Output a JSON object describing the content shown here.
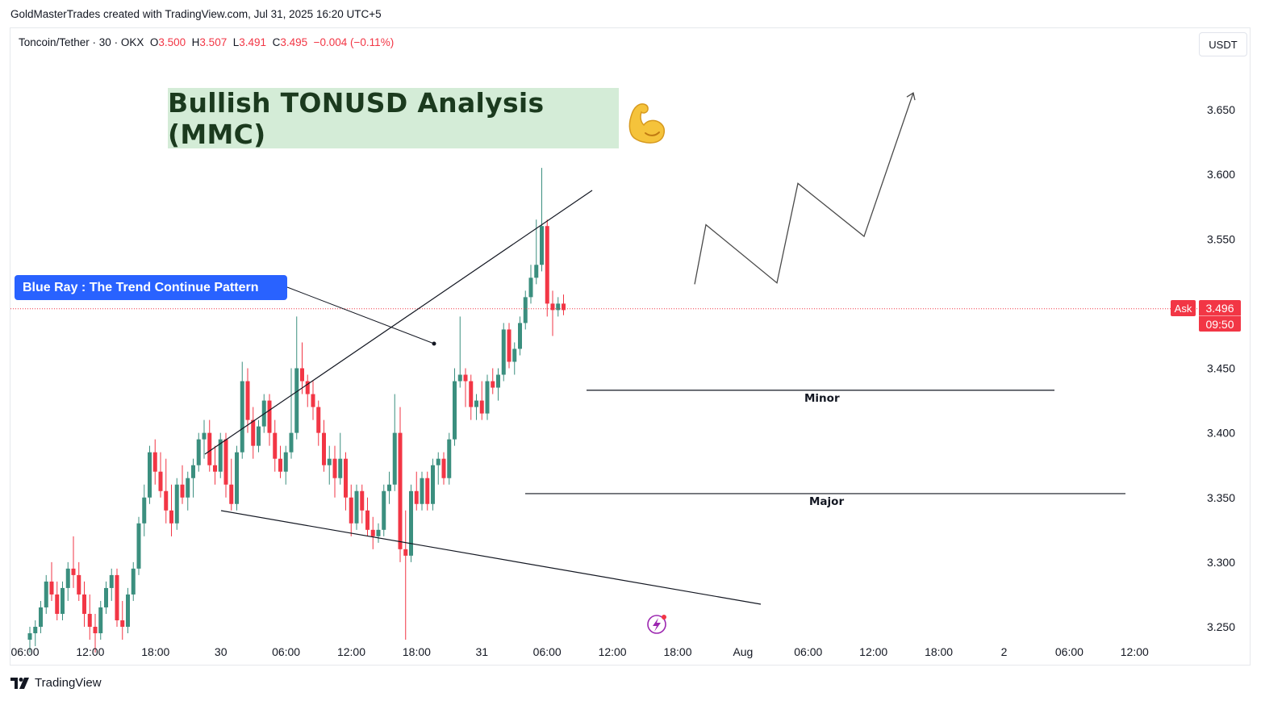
{
  "header": {
    "credit": "GoldMasterTrades created with TradingView.com, Jul 31, 2025 16:20 UTC+5",
    "symbol_label": "Toncoin/Tether · 30 · OKX",
    "o_label": "O",
    "o_value": "3.500",
    "h_label": "H",
    "h_value": "3.507",
    "l_label": "L",
    "l_value": "3.491",
    "c_label": "C",
    "c_value": "3.495",
    "change": "−0.004 (−0.11%)",
    "currency_button": "USDT"
  },
  "annotations": {
    "title": "Bullish TONUSD Analysis (MMC)",
    "callout": "Blue Ray : The Trend Continue Pattern",
    "minor_label": "Minor",
    "major_label": "Major"
  },
  "price_tag": {
    "ask_label": "Ask",
    "price": "3.496",
    "countdown": "09:50"
  },
  "footer": {
    "brand": "TradingView"
  },
  "colors": {
    "up": "#26a69a",
    "up_body": "#3b8f7f",
    "down": "#f23645",
    "accent": "#2962ff",
    "title_bg": "#d4ecd7"
  },
  "chart_data": {
    "type": "candlestick",
    "timeframe": "30",
    "ylim": [
      3.24,
      3.68
    ],
    "y_ticks": [
      "3.650",
      "3.600",
      "3.550",
      "3.500",
      "3.450",
      "3.400",
      "3.350",
      "3.300",
      "3.250"
    ],
    "x_ticks": [
      "06:00",
      "12:00",
      "18:00",
      "30",
      "06:00",
      "12:00",
      "18:00",
      "31",
      "06:00",
      "12:00",
      "18:00",
      "Aug",
      "06:00",
      "12:00",
      "18:00",
      "2",
      "06:00",
      "12:00"
    ],
    "candles_ohlc": [
      [
        3.24,
        3.25,
        3.23,
        3.245
      ],
      [
        3.245,
        3.255,
        3.235,
        3.25
      ],
      [
        3.25,
        3.27,
        3.245,
        3.265
      ],
      [
        3.265,
        3.29,
        3.26,
        3.285
      ],
      [
        3.285,
        3.3,
        3.27,
        3.275
      ],
      [
        3.275,
        3.285,
        3.255,
        3.26
      ],
      [
        3.26,
        3.285,
        3.255,
        3.28
      ],
      [
        3.28,
        3.3,
        3.27,
        3.295
      ],
      [
        3.295,
        3.32,
        3.28,
        3.29
      ],
      [
        3.29,
        3.3,
        3.27,
        3.275
      ],
      [
        3.275,
        3.285,
        3.25,
        3.26
      ],
      [
        3.26,
        3.275,
        3.24,
        3.25
      ],
      [
        3.25,
        3.26,
        3.23,
        3.245
      ],
      [
        3.245,
        3.27,
        3.24,
        3.265
      ],
      [
        3.265,
        3.285,
        3.26,
        3.28
      ],
      [
        3.28,
        3.295,
        3.27,
        3.29
      ],
      [
        3.29,
        3.295,
        3.25,
        3.255
      ],
      [
        3.255,
        3.27,
        3.24,
        3.25
      ],
      [
        3.25,
        3.28,
        3.245,
        3.275
      ],
      [
        3.275,
        3.3,
        3.27,
        3.295
      ],
      [
        3.295,
        3.335,
        3.29,
        3.33
      ],
      [
        3.33,
        3.36,
        3.32,
        3.35
      ],
      [
        3.35,
        3.39,
        3.345,
        3.385
      ],
      [
        3.385,
        3.395,
        3.36,
        3.37
      ],
      [
        3.37,
        3.385,
        3.35,
        3.355
      ],
      [
        3.355,
        3.38,
        3.33,
        3.34
      ],
      [
        3.34,
        3.36,
        3.32,
        3.33
      ],
      [
        3.33,
        3.365,
        3.325,
        3.36
      ],
      [
        3.36,
        3.375,
        3.345,
        3.35
      ],
      [
        3.35,
        3.37,
        3.34,
        3.365
      ],
      [
        3.365,
        3.38,
        3.35,
        3.375
      ],
      [
        3.375,
        3.4,
        3.37,
        3.395
      ],
      [
        3.395,
        3.41,
        3.38,
        3.4
      ],
      [
        3.4,
        3.41,
        3.37,
        3.375
      ],
      [
        3.375,
        3.39,
        3.36,
        3.37
      ],
      [
        3.37,
        3.4,
        3.365,
        3.395
      ],
      [
        3.395,
        3.4,
        3.35,
        3.36
      ],
      [
        3.36,
        3.38,
        3.34,
        3.345
      ],
      [
        3.345,
        3.39,
        3.34,
        3.385
      ],
      [
        3.385,
        3.455,
        3.38,
        3.44
      ],
      [
        3.44,
        3.45,
        3.4,
        3.41
      ],
      [
        3.41,
        3.42,
        3.38,
        3.39
      ],
      [
        3.39,
        3.41,
        3.385,
        3.405
      ],
      [
        3.405,
        3.43,
        3.4,
        3.425
      ],
      [
        3.425,
        3.43,
        3.39,
        3.4
      ],
      [
        3.4,
        3.41,
        3.37,
        3.38
      ],
      [
        3.38,
        3.39,
        3.365,
        3.37
      ],
      [
        3.37,
        3.39,
        3.36,
        3.385
      ],
      [
        3.385,
        3.45,
        3.38,
        3.4
      ],
      [
        3.4,
        3.49,
        3.395,
        3.45
      ],
      [
        3.45,
        3.47,
        3.43,
        3.44
      ],
      [
        3.44,
        3.445,
        3.42,
        3.43
      ],
      [
        3.43,
        3.44,
        3.41,
        3.42
      ],
      [
        3.42,
        3.425,
        3.39,
        3.4
      ],
      [
        3.4,
        3.41,
        3.37,
        3.375
      ],
      [
        3.375,
        3.39,
        3.36,
        3.38
      ],
      [
        3.38,
        3.39,
        3.35,
        3.365
      ],
      [
        3.365,
        3.4,
        3.36,
        3.38
      ],
      [
        3.38,
        3.385,
        3.34,
        3.35
      ],
      [
        3.35,
        3.36,
        3.32,
        3.33
      ],
      [
        3.33,
        3.36,
        3.325,
        3.355
      ],
      [
        3.355,
        3.36,
        3.33,
        3.34
      ],
      [
        3.34,
        3.35,
        3.32,
        3.325
      ],
      [
        3.325,
        3.335,
        3.31,
        3.32
      ],
      [
        3.32,
        3.33,
        3.315,
        3.325
      ],
      [
        3.325,
        3.36,
        3.32,
        3.355
      ],
      [
        3.355,
        3.37,
        3.345,
        3.36
      ],
      [
        3.36,
        3.43,
        3.355,
        3.4
      ],
      [
        3.4,
        3.42,
        3.3,
        3.31
      ],
      [
        3.31,
        3.34,
        3.24,
        3.305
      ],
      [
        3.305,
        3.36,
        3.3,
        3.355
      ],
      [
        3.355,
        3.37,
        3.34,
        3.345
      ],
      [
        3.345,
        3.37,
        3.34,
        3.365
      ],
      [
        3.365,
        3.37,
        3.34,
        3.345
      ],
      [
        3.345,
        3.38,
        3.34,
        3.375
      ],
      [
        3.375,
        3.385,
        3.36,
        3.38
      ],
      [
        3.38,
        3.385,
        3.36,
        3.365
      ],
      [
        3.365,
        3.4,
        3.36,
        3.395
      ],
      [
        3.395,
        3.45,
        3.39,
        3.44
      ],
      [
        3.44,
        3.49,
        3.435,
        3.445
      ],
      [
        3.445,
        3.45,
        3.42,
        3.44
      ],
      [
        3.44,
        3.445,
        3.41,
        3.42
      ],
      [
        3.42,
        3.43,
        3.41,
        3.425
      ],
      [
        3.425,
        3.44,
        3.41,
        3.415
      ],
      [
        3.415,
        3.445,
        3.41,
        3.44
      ],
      [
        3.44,
        3.45,
        3.43,
        3.435
      ],
      [
        3.435,
        3.45,
        3.425,
        3.445
      ],
      [
        3.445,
        3.485,
        3.44,
        3.48
      ],
      [
        3.48,
        3.485,
        3.45,
        3.455
      ],
      [
        3.455,
        3.47,
        3.445,
        3.465
      ],
      [
        3.465,
        3.49,
        3.46,
        3.485
      ],
      [
        3.485,
        3.51,
        3.48,
        3.505
      ],
      [
        3.505,
        3.53,
        3.5,
        3.52
      ],
      [
        3.52,
        3.565,
        3.515,
        3.53
      ],
      [
        3.53,
        3.605,
        3.525,
        3.56
      ],
      [
        3.56,
        3.565,
        3.49,
        3.5
      ],
      [
        3.5,
        3.51,
        3.475,
        3.495
      ],
      [
        3.495,
        3.505,
        3.49,
        3.5
      ],
      [
        3.5,
        3.507,
        3.491,
        3.495
      ]
    ],
    "current_price": 3.496,
    "drawings": {
      "upper_trendline": [
        [
          3.385,
          3.61
        ],
        "rising"
      ],
      "lower_trendline": "falling",
      "minor_level": 3.433,
      "major_level": 3.353,
      "projection_path": [
        3.515,
        3.561,
        3.516,
        3.593,
        3.552,
        3.663
      ]
    }
  }
}
